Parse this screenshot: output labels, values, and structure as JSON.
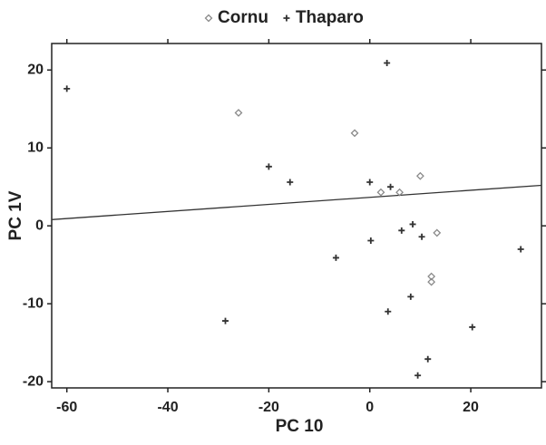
{
  "chart_data": {
    "type": "scatter",
    "x_label": "PC 10",
    "y_label": "PC 1V",
    "xlim": [
      -63,
      34
    ],
    "xticks": [
      -60,
      -40,
      -20,
      0,
      20
    ],
    "ylim": [
      -20.8,
      23.4
    ],
    "yticks": [
      -20,
      -10,
      0,
      10,
      20
    ],
    "legend_position": "top",
    "series": [
      {
        "name": "Cornu",
        "color": "#8a8a8a",
        "marker": "diamond",
        "x": [
          -26,
          -3,
          2.2,
          5.9,
          10,
          13.3,
          12.2,
          12.2
        ],
        "values": [
          14.5,
          11.9,
          4.3,
          4.3,
          6.4,
          -0.9,
          -6.5,
          -7.2
        ]
      },
      {
        "name": "Thaparo",
        "color": "#333333",
        "marker": "plus",
        "x": [
          -60,
          3.4,
          -20,
          -15.8,
          0,
          4.1,
          0.2,
          6.3,
          8.5,
          10.3,
          -6.7,
          8.1,
          3.6,
          -28.6,
          20.3,
          29.9,
          11.5,
          9.5
        ],
        "values": [
          17.6,
          20.9,
          7.6,
          5.6,
          5.6,
          5,
          -1.9,
          -0.6,
          0.2,
          -1.4,
          -4.1,
          -9.1,
          -11,
          -12.2,
          -13,
          -3,
          -17.1,
          -19.2
        ]
      }
    ],
    "fit_line": {
      "color": "#333333",
      "x": [
        -63,
        34
      ],
      "values": [
        0.8,
        5.2
      ]
    }
  }
}
